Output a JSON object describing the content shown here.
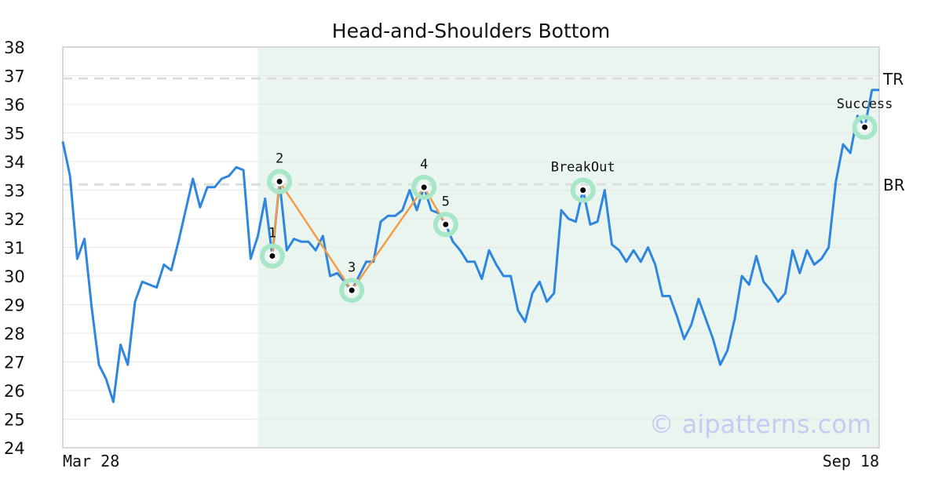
{
  "chart_data": {
    "type": "line",
    "title": "Head-and-Shoulders Bottom",
    "xlabel": "",
    "ylabel": "",
    "ylim": [
      24,
      38
    ],
    "y_ticks": [
      24,
      25,
      26,
      27,
      28,
      29,
      30,
      31,
      32,
      33,
      34,
      35,
      36,
      37,
      38
    ],
    "x_tick_labels": [
      "Mar 28",
      "Sep 18"
    ],
    "grid": true,
    "series": [
      {
        "color": "#2e86de",
        "values": [
          34.7,
          33.5,
          30.6,
          31.3,
          28.9,
          26.9,
          26.4,
          25.6,
          27.6,
          26.9,
          29.1,
          29.8,
          29.7,
          29.6,
          30.4,
          30.2,
          31.2,
          32.3,
          33.4,
          32.4,
          33.1,
          33.1,
          33.4,
          33.5,
          33.8,
          33.7,
          30.6,
          31.4,
          32.7,
          30.7,
          33.3,
          30.9,
          31.3,
          31.2,
          31.2,
          30.9,
          31.4,
          30.0,
          30.1,
          29.8,
          29.5,
          30.0,
          30.5,
          30.5,
          31.9,
          32.1,
          32.1,
          32.3,
          33.0,
          32.3,
          33.1,
          32.3,
          32.2,
          31.8,
          31.2,
          30.9,
          30.5,
          30.5,
          29.9,
          30.9,
          30.4,
          30.0,
          30.0,
          28.8,
          28.4,
          29.4,
          29.8,
          29.1,
          29.4,
          32.3,
          32.0,
          31.9,
          33.0,
          31.8,
          31.9,
          33.0,
          31.1,
          30.9,
          30.5,
          30.9,
          30.5,
          31.0,
          30.4,
          29.3,
          29.3,
          28.6,
          27.8,
          28.3,
          29.2,
          28.5,
          27.8,
          26.9,
          27.4,
          28.5,
          30.0,
          29.7,
          30.7,
          29.8,
          29.5,
          29.1,
          29.4,
          30.9,
          30.1,
          30.9,
          30.4,
          30.6,
          31.0,
          33.3,
          34.6,
          34.3,
          35.6,
          35.2,
          36.5,
          36.5
        ]
      }
    ],
    "pattern_lines": {
      "color": "#f39c48",
      "points": [
        {
          "label": "1",
          "i": 29,
          "y": 30.7
        },
        {
          "label": "2",
          "i": 30,
          "y": 33.3
        },
        {
          "label": "3",
          "i": 40,
          "y": 29.5
        },
        {
          "label": "4",
          "i": 50,
          "y": 33.1
        },
        {
          "label": "5",
          "i": 53,
          "y": 31.8
        }
      ]
    },
    "annotations": [
      {
        "label": "BreakOut",
        "i": 72,
        "y": 33.0
      },
      {
        "label": "Success",
        "i": 111,
        "y": 35.2
      }
    ],
    "levels": [
      {
        "label": "TR",
        "y": 36.9
      },
      {
        "label": "BR",
        "y": 33.2
      }
    ],
    "highlight_range": {
      "from_i": 27,
      "to_i": 113,
      "color": "#eaf5f0"
    },
    "marker_color": "#a8e6c8",
    "watermark": "© aipatterns.com"
  }
}
